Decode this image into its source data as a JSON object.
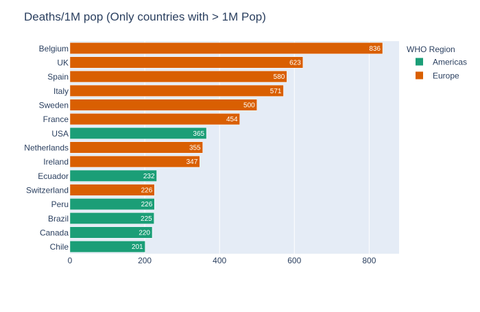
{
  "chart_data": {
    "type": "bar",
    "orientation": "horizontal",
    "title": "Deaths/1M pop (Only countries with > 1M Pop)",
    "xlabel": "",
    "ylabel": "",
    "xlim": [
      0,
      880
    ],
    "x_ticks": [
      0,
      200,
      400,
      600,
      800
    ],
    "grid": true,
    "legend_position": "top-right",
    "legend_title": "WHO Region",
    "legend": [
      {
        "name": "Americas",
        "color": "#1b9e77"
      },
      {
        "name": "Europe",
        "color": "#d95f02"
      }
    ],
    "colors": {
      "Americas": "#1b9e77",
      "Europe": "#d95f02",
      "plot_bg": "#e5ecf6",
      "text": "#2a3f5f"
    },
    "categories": [
      "Belgium",
      "UK",
      "Spain",
      "Italy",
      "Sweden",
      "France",
      "USA",
      "Netherlands",
      "Ireland",
      "Ecuador",
      "Switzerland",
      "Peru",
      "Brazil",
      "Canada",
      "Chile"
    ],
    "values": [
      836,
      623,
      580,
      571,
      500,
      454,
      365,
      355,
      347,
      232,
      226,
      226,
      225,
      220,
      201
    ],
    "regions": [
      "Europe",
      "Europe",
      "Europe",
      "Europe",
      "Europe",
      "Europe",
      "Americas",
      "Europe",
      "Europe",
      "Americas",
      "Europe",
      "Americas",
      "Americas",
      "Americas",
      "Americas"
    ],
    "data_labels": [
      "836",
      "623",
      "580",
      "571",
      "500",
      "454",
      "365",
      "355",
      "347",
      "232",
      "226",
      "226",
      "225",
      "220",
      "201"
    ]
  }
}
